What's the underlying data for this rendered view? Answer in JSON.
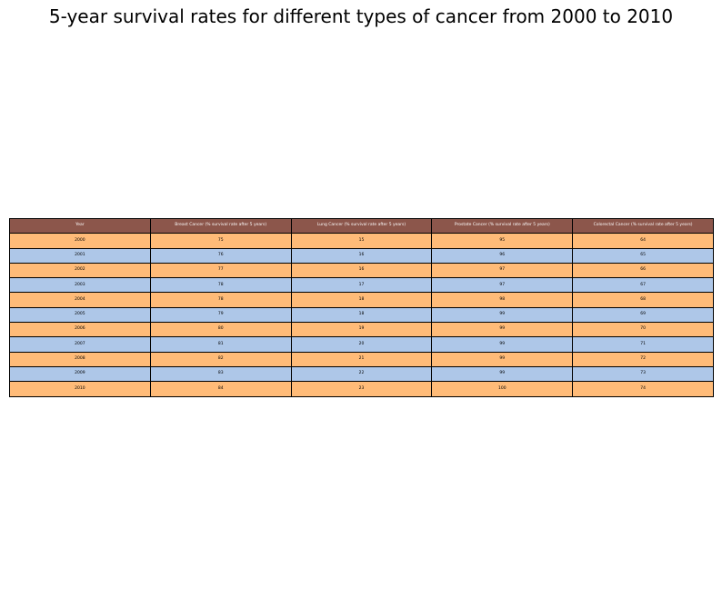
{
  "chart_data": {
    "type": "table",
    "title": "5-year survival rates for different types of cancer from 2000 to 2010",
    "columns": [
      "Year",
      "Breast Cancer (% survival rate after 5 years)",
      "Lung Cancer (% survival rate after 5 years)",
      "Prostate Cancer (% survival rate after 5 years)",
      "Colorectal Cancer (% survival rate after 5 years)"
    ],
    "rows": [
      [
        "2000",
        "75",
        "15",
        "95",
        "64"
      ],
      [
        "2001",
        "76",
        "16",
        "96",
        "65"
      ],
      [
        "2002",
        "77",
        "16",
        "97",
        "66"
      ],
      [
        "2003",
        "78",
        "17",
        "97",
        "67"
      ],
      [
        "2004",
        "78",
        "18",
        "98",
        "68"
      ],
      [
        "2005",
        "79",
        "18",
        "99",
        "69"
      ],
      [
        "2006",
        "80",
        "19",
        "99",
        "70"
      ],
      [
        "2007",
        "81",
        "20",
        "99",
        "71"
      ],
      [
        "2008",
        "82",
        "21",
        "99",
        "72"
      ],
      [
        "2009",
        "83",
        "22",
        "99",
        "73"
      ],
      [
        "2010",
        "84",
        "23",
        "100",
        "74"
      ]
    ],
    "colors": {
      "header_bg": "#8c564b",
      "header_text": "#ffffff",
      "row_odd_bg": "#ffbb78",
      "row_even_bg": "#aec7e8"
    }
  }
}
